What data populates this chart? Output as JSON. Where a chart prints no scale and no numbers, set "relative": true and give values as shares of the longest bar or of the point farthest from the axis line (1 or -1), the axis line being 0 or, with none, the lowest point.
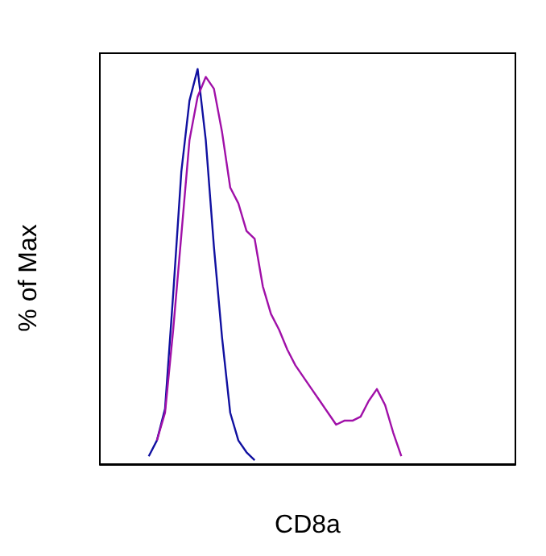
{
  "chart_data": {
    "type": "line",
    "xlabel": "CD8a",
    "ylabel": "% of Max",
    "relative": true,
    "grid": false,
    "marker": "none",
    "line_style": "solid",
    "categories": [
      null,
      null,
      null,
      null,
      null,
      null,
      null,
      null,
      null,
      null,
      null,
      null,
      null,
      null,
      null,
      null,
      null,
      null,
      null,
      null,
      null,
      null,
      null,
      null,
      null,
      null,
      null,
      null,
      null,
      null,
      null,
      null,
      null,
      null,
      null,
      null,
      null,
      null,
      null,
      null,
      null,
      null,
      null,
      null,
      null,
      null,
      null,
      null,
      null,
      null,
      null,
      null
    ],
    "series": [
      {
        "color": "#1010a0",
        "values": [
          null,
          null,
          null,
          null,
          null,
          null,
          0.02,
          0.06,
          0.14,
          0.43,
          0.74,
          0.92,
          1,
          0.82,
          0.55,
          0.32,
          0.13,
          0.06,
          0.03,
          0.01,
          null,
          null,
          null,
          null,
          null,
          null,
          null,
          null,
          null,
          null,
          null,
          null,
          null,
          null,
          null,
          null,
          null,
          null,
          null,
          null,
          null,
          null,
          null,
          null,
          null,
          null,
          null,
          null,
          null,
          null,
          null,
          null
        ]
      },
      {
        "color": "#a010a8",
        "values": [
          null,
          null,
          null,
          null,
          null,
          null,
          null,
          0.06,
          0.13,
          0.34,
          0.58,
          0.82,
          0.93,
          0.98,
          0.95,
          0.84,
          0.7,
          0.66,
          0.59,
          0.57,
          0.45,
          0.38,
          0.34,
          0.29,
          0.25,
          0.22,
          0.19,
          0.16,
          0.13,
          0.1,
          0.11,
          0.11,
          0.12,
          0.16,
          0.19,
          0.15,
          0.08,
          0.02,
          null,
          null,
          null,
          null,
          null,
          null,
          null,
          null,
          null,
          null,
          null,
          null,
          null,
          null
        ]
      }
    ]
  }
}
